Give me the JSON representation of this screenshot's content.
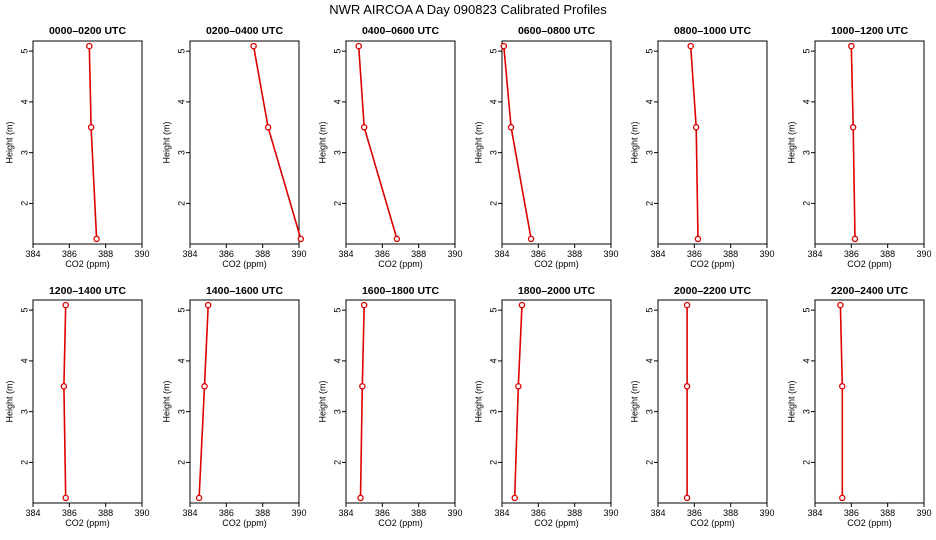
{
  "title": "NWR AIRCOA A  Day 090823  Calibrated Profiles",
  "colors": {
    "series": "#dd0000",
    "axis": "#000000",
    "background": "#ffffff"
  },
  "chart_data": {
    "type": "line",
    "layout": "small-multiples 2x6",
    "xlabel": "CO2 (ppm)",
    "ylabel": "Height (m)",
    "xlim": [
      384,
      390
    ],
    "ylim": [
      1.2,
      5.2
    ],
    "xticks": [
      384,
      386,
      388,
      390
    ],
    "yticks": [
      2,
      3,
      4,
      5
    ],
    "heights": [
      1.3,
      3.5,
      5.1
    ],
    "grid": false,
    "panels": [
      {
        "title": "0000–0200 UTC",
        "co2": [
          387.5,
          387.2,
          387.1
        ]
      },
      {
        "title": "0200–0400 UTC",
        "co2": [
          390.1,
          388.3,
          387.5
        ]
      },
      {
        "title": "0400–0600 UTC",
        "co2": [
          386.8,
          385.0,
          384.7
        ]
      },
      {
        "title": "0600–0800 UTC",
        "co2": [
          385.6,
          384.5,
          384.1
        ]
      },
      {
        "title": "0800–1000 UTC",
        "co2": [
          386.2,
          386.1,
          385.8
        ]
      },
      {
        "title": "1000–1200 UTC",
        "co2": [
          386.2,
          386.1,
          386.0
        ]
      },
      {
        "title": "1200–1400 UTC",
        "co2": [
          385.8,
          385.7,
          385.8
        ]
      },
      {
        "title": "1400–1600 UTC",
        "co2": [
          384.5,
          384.8,
          385.0
        ]
      },
      {
        "title": "1600–1800 UTC",
        "co2": [
          384.8,
          384.9,
          385.0
        ]
      },
      {
        "title": "1800–2000 UTC",
        "co2": [
          384.7,
          384.9,
          385.1
        ]
      },
      {
        "title": "2000–2200 UTC",
        "co2": [
          385.6,
          385.6,
          385.6
        ]
      },
      {
        "title": "2200–2400 UTC",
        "co2": [
          385.5,
          385.5,
          385.4
        ]
      }
    ]
  }
}
